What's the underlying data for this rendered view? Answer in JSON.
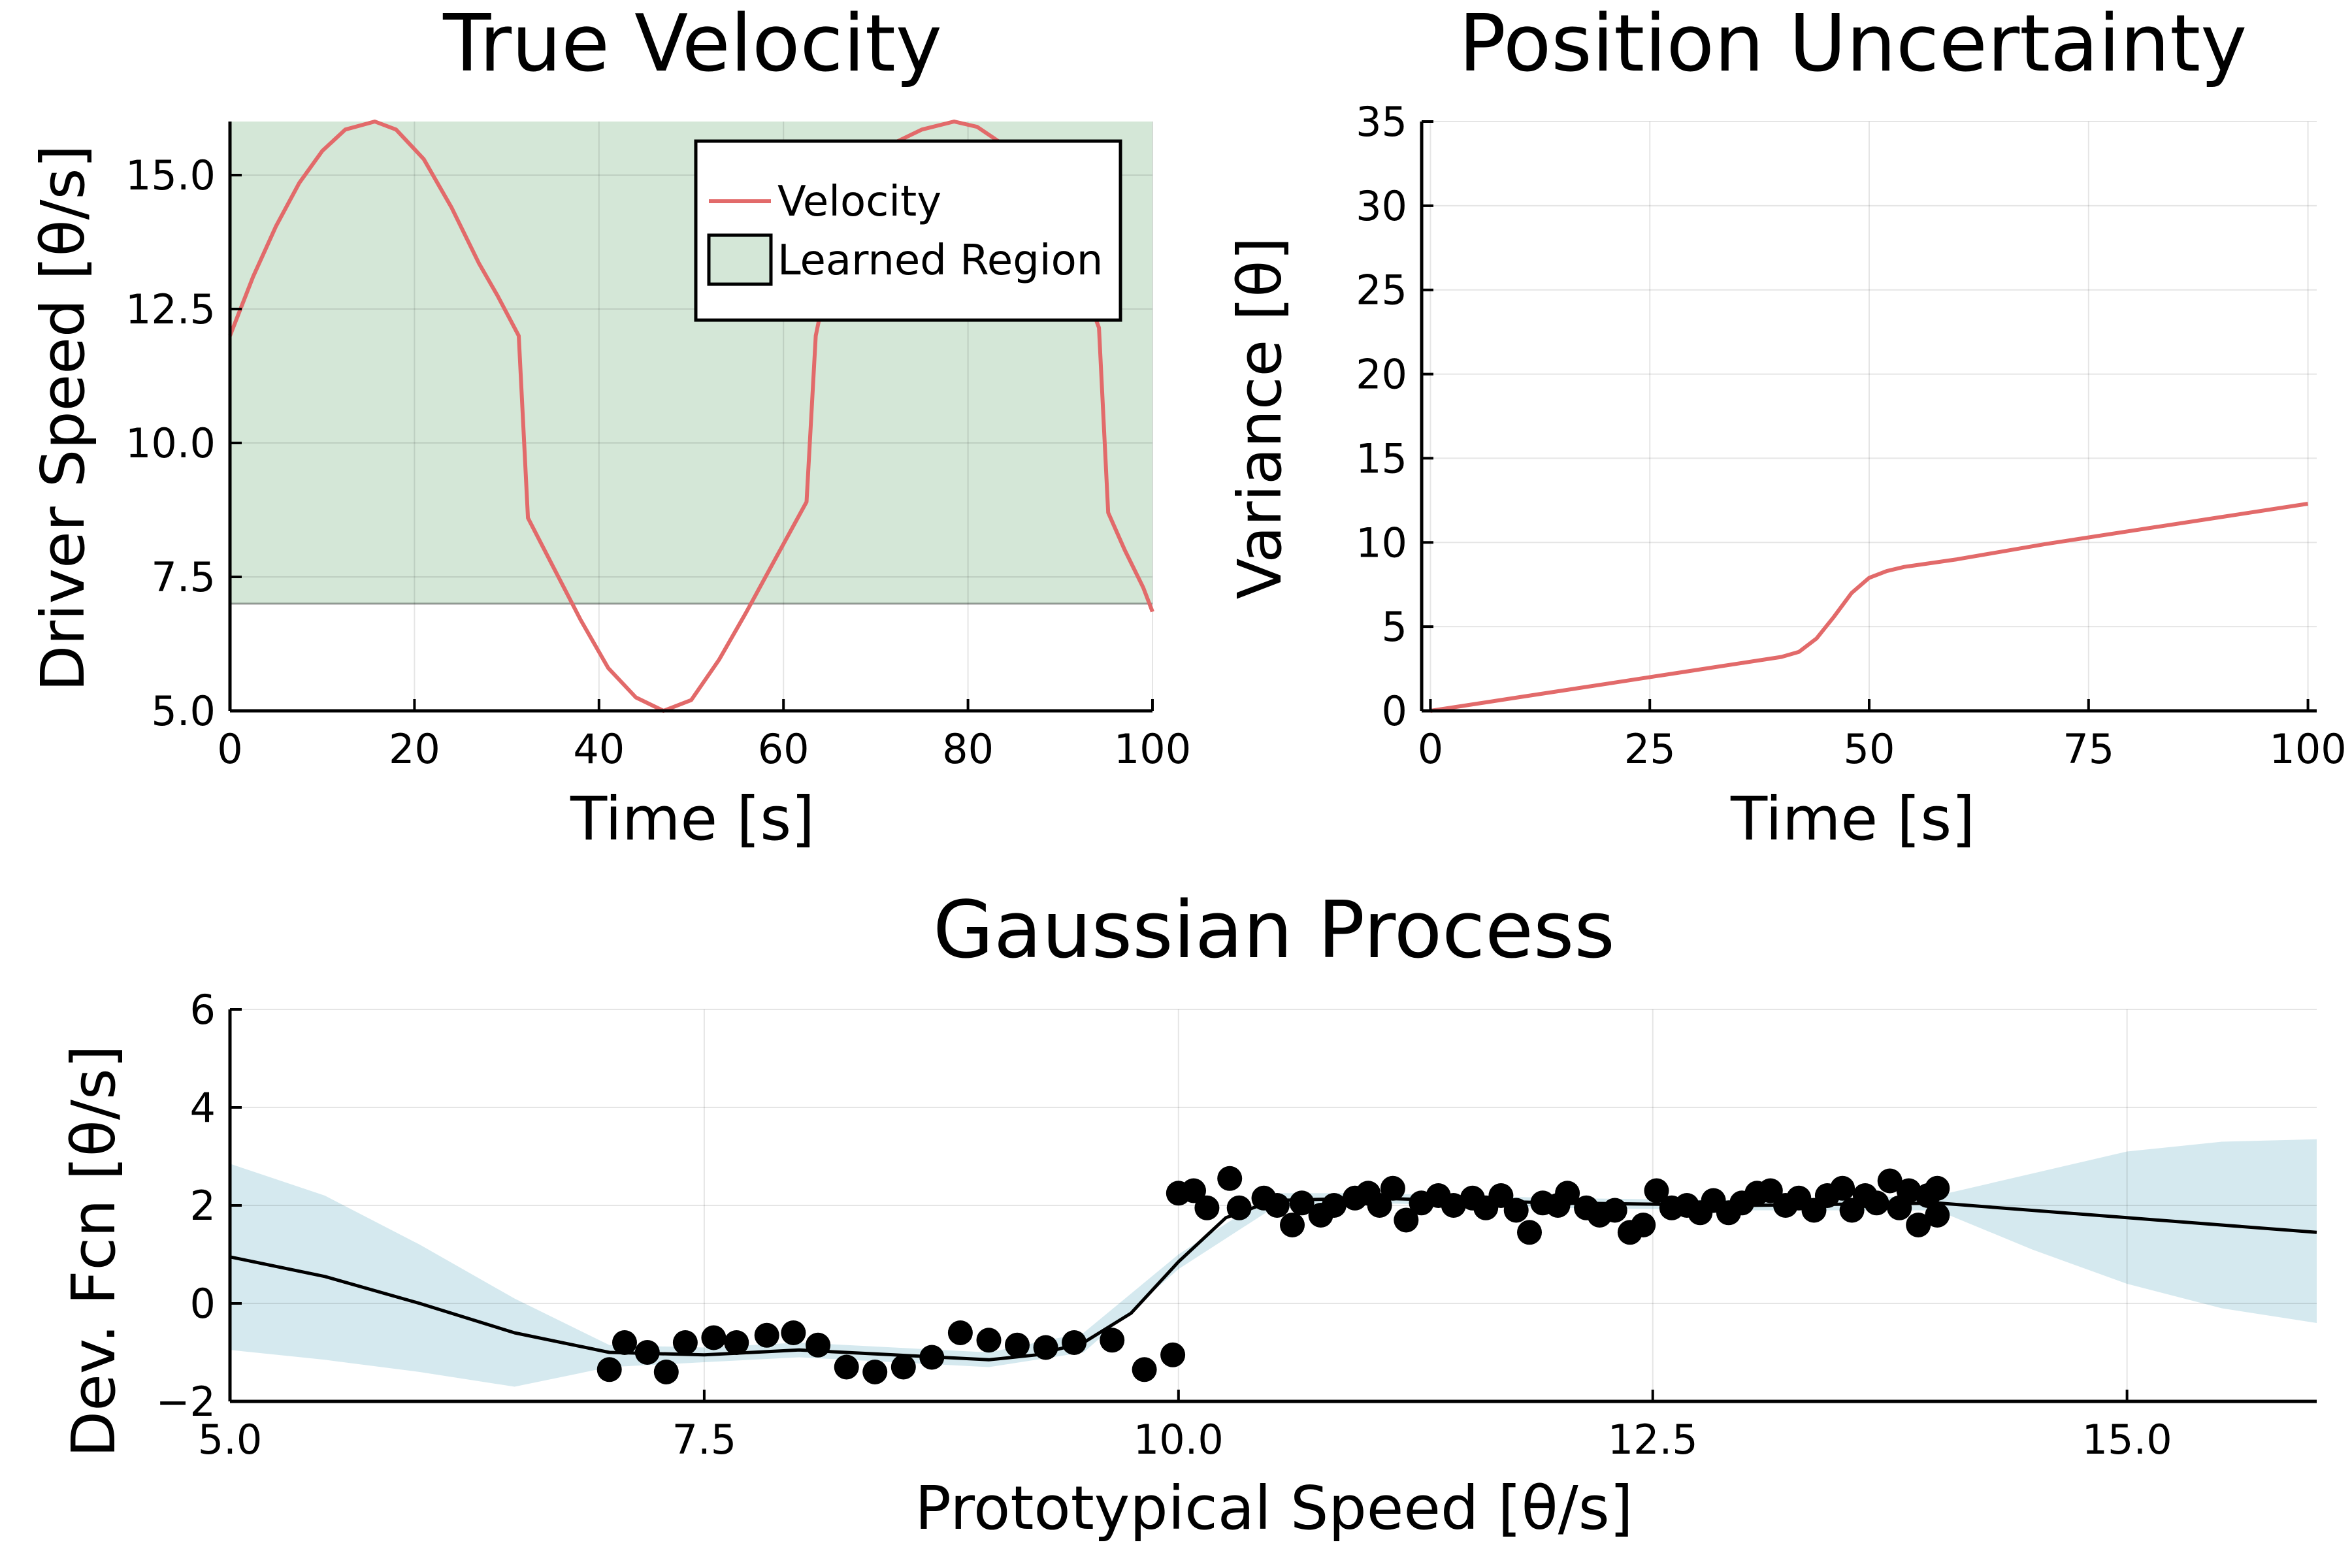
{
  "chart_data": [
    {
      "type": "line",
      "title": "True Velocity",
      "xlabel": "Time [s]",
      "ylabel": "Driver Speed [θ/s]",
      "xlim": [
        0,
        100
      ],
      "ylim": [
        5,
        16
      ],
      "xticks": [
        0,
        20,
        40,
        60,
        80,
        100
      ],
      "xtick_labels": [
        "0",
        "20",
        "40",
        "60",
        "80",
        "100"
      ],
      "yticks": [
        5,
        7.5,
        10,
        12.5,
        15
      ],
      "ytick_labels": [
        "5.0",
        "7.5",
        "10.0",
        "12.5",
        "15.0"
      ],
      "grid": true,
      "legend": {
        "placement": "top-right",
        "entries": [
          "Velocity",
          "Learned Region"
        ]
      },
      "colors": {
        "velocity": "#e26a6a",
        "region": "#d4e7d7",
        "region_edge": "#000000"
      },
      "shaded_region": {
        "name": "Learned Region",
        "ymin": 7,
        "ymax": 16
      },
      "series": [
        {
          "name": "Velocity",
          "x": [
            0,
            2.5,
            5,
            7.5,
            10,
            12.5,
            15.7,
            18,
            21,
            24,
            27,
            29,
            31.3,
            32.3,
            35,
            38,
            41,
            44,
            47,
            50,
            53,
            56,
            59,
            62.5,
            63.5,
            66,
            69,
            72,
            75,
            78.5,
            81,
            84,
            87,
            90,
            93,
            94.2,
            95.2,
            97,
            99,
            100
          ],
          "y": [
            12,
            13.1,
            14.05,
            14.85,
            15.45,
            15.85,
            16.0,
            15.85,
            15.3,
            14.4,
            13.35,
            12.75,
            12.0,
            8.6,
            7.7,
            6.7,
            5.8,
            5.25,
            5.0,
            5.2,
            5.95,
            6.85,
            7.8,
            8.9,
            12.0,
            14.1,
            15.1,
            15.6,
            15.85,
            16.0,
            15.9,
            15.55,
            14.85,
            14.0,
            12.7,
            12.15,
            8.7,
            8.0,
            7.3,
            6.85
          ]
        }
      ]
    },
    {
      "type": "line",
      "title": "Position Uncertainty",
      "xlabel": "Time [s]",
      "ylabel": "Variance [θ]",
      "xlim": [
        -1,
        101
      ],
      "ylim": [
        0,
        35
      ],
      "xticks": [
        0,
        25,
        50,
        75,
        100
      ],
      "xtick_labels": [
        "0",
        "25",
        "50",
        "75",
        "100"
      ],
      "yticks": [
        0,
        5,
        10,
        15,
        20,
        25,
        30,
        35
      ],
      "ytick_labels": [
        "0",
        "5",
        "10",
        "15",
        "20",
        "25",
        "30",
        "35"
      ],
      "grid": true,
      "colors": {
        "line": "#e26a6a"
      },
      "series": [
        {
          "x": [
            0,
            10,
            20,
            30,
            40,
            42,
            44,
            46,
            48,
            50,
            52,
            54,
            60,
            70,
            80,
            90,
            100
          ],
          "y": [
            0,
            0.8,
            1.6,
            2.4,
            3.2,
            3.5,
            4.3,
            5.6,
            7.0,
            7.9,
            8.3,
            8.55,
            9.0,
            9.9,
            10.7,
            11.5,
            12.3
          ]
        }
      ]
    },
    {
      "type": "scatter",
      "title": "Gaussian Process",
      "xlabel": "Prototypical Speed [θ/s]",
      "ylabel": "Dev. Fcn [θ/s]",
      "xlim": [
        5,
        16
      ],
      "ylim": [
        -2,
        6
      ],
      "xticks": [
        5,
        7.5,
        10,
        12.5,
        15
      ],
      "xtick_labels": [
        "5.0",
        "7.5",
        "10.0",
        "12.5",
        "15.0"
      ],
      "yticks": [
        -2,
        0,
        2,
        4,
        6
      ],
      "ytick_labels": [
        "−2",
        "0",
        "2",
        "4",
        "6"
      ],
      "grid": true,
      "colors": {
        "mean": "#000000",
        "band": "#d5e9ef",
        "points": "#000000"
      },
      "mean": {
        "x": [
          5,
          5.5,
          6,
          6.5,
          7,
          7.5,
          8,
          8.5,
          9,
          9.25,
          9.5,
          9.75,
          10,
          10.25,
          10.5,
          11,
          12,
          13,
          14,
          15,
          16
        ],
        "y": [
          0.95,
          0.55,
          0.0,
          -0.6,
          -1.0,
          -1.05,
          -0.95,
          -1.05,
          -1.15,
          -1.05,
          -0.8,
          -0.2,
          0.85,
          1.75,
          2.1,
          2.15,
          2.05,
          2.0,
          2.05,
          1.75,
          1.45
        ]
      },
      "band": {
        "x": [
          5,
          5.5,
          6,
          6.5,
          7,
          7.5,
          8,
          8.5,
          9,
          9.5,
          10,
          10.5,
          11,
          12,
          13,
          14,
          14.5,
          15,
          15.5,
          16
        ],
        "upper": [
          2.85,
          2.2,
          1.2,
          0.1,
          -0.85,
          -0.9,
          -0.8,
          -0.9,
          -1.0,
          -0.6,
          1.0,
          2.25,
          2.25,
          2.15,
          2.1,
          2.2,
          2.65,
          3.1,
          3.3,
          3.35
        ],
        "lower": [
          -0.95,
          -1.15,
          -1.4,
          -1.7,
          -1.3,
          -1.2,
          -1.1,
          -1.2,
          -1.3,
          -1.0,
          0.7,
          1.95,
          2.05,
          1.95,
          1.9,
          1.9,
          1.1,
          0.4,
          -0.1,
          -0.4
        ]
      },
      "points": {
        "x": [
          7.0,
          7.08,
          7.2,
          7.3,
          7.4,
          7.55,
          7.67,
          7.83,
          7.97,
          8.1,
          8.25,
          8.4,
          8.55,
          8.7,
          8.85,
          9.0,
          9.15,
          9.3,
          9.45,
          9.65,
          9.82,
          9.97,
          10.0,
          10.08,
          10.15,
          10.27,
          10.32,
          10.45,
          10.52,
          10.6,
          10.65,
          10.75,
          10.82,
          10.93,
          11.0,
          11.06,
          11.13,
          11.2,
          11.28,
          11.37,
          11.45,
          11.55,
          11.62,
          11.7,
          11.78,
          11.85,
          11.92,
          12.0,
          12.05,
          12.15,
          12.22,
          12.3,
          12.38,
          12.45,
          12.52,
          12.6,
          12.68,
          12.75,
          12.82,
          12.9,
          12.97,
          13.05,
          13.12,
          13.2,
          13.27,
          13.35,
          13.42,
          13.5,
          13.55,
          13.62,
          13.68,
          13.75,
          13.8,
          13.85,
          13.9,
          13.95,
          14.0,
          14.0
        ],
        "y": [
          -1.35,
          -0.8,
          -1.0,
          -1.4,
          -0.8,
          -0.7,
          -0.8,
          -0.65,
          -0.6,
          -0.85,
          -1.3,
          -1.4,
          -1.3,
          -1.1,
          -0.6,
          -0.75,
          -0.85,
          -0.9,
          -0.8,
          -0.75,
          -1.35,
          -1.05,
          2.25,
          2.3,
          1.95,
          2.55,
          1.95,
          2.15,
          2.0,
          1.6,
          2.05,
          1.8,
          2.0,
          2.15,
          2.25,
          2.0,
          2.35,
          1.7,
          2.05,
          2.2,
          2.0,
          2.15,
          1.95,
          2.2,
          1.9,
          1.45,
          2.05,
          2.0,
          2.25,
          1.95,
          1.8,
          1.9,
          1.45,
          1.6,
          2.3,
          1.95,
          2.0,
          1.85,
          2.1,
          1.85,
          2.05,
          2.25,
          2.3,
          2.0,
          2.15,
          1.9,
          2.2,
          2.35,
          1.9,
          2.2,
          2.05,
          2.5,
          1.95,
          2.3,
          1.6,
          2.2,
          1.8,
          2.35
        ]
      }
    }
  ]
}
